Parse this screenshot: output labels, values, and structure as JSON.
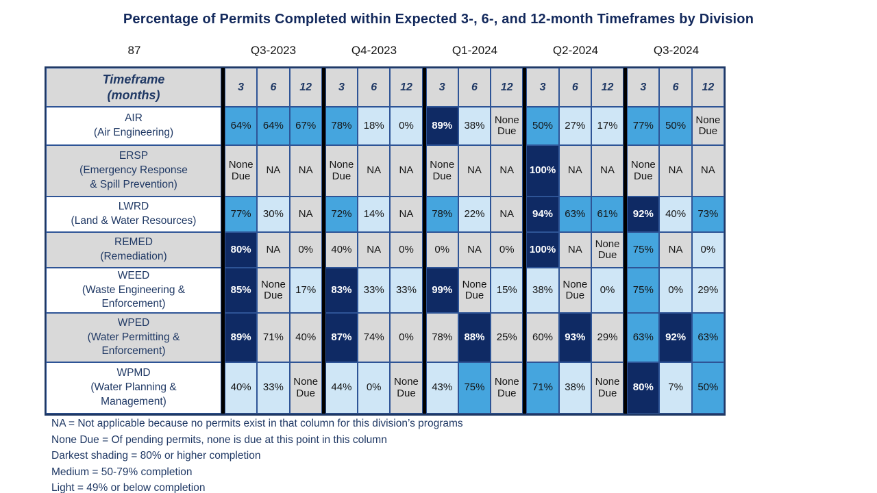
{
  "title": "Percentage of Permits Completed within Expected 3-, 6-, and 12-month Timeframes by Division",
  "page_number": "87",
  "quarters": [
    "Q3-2023",
    "Q4-2023",
    "Q1-2024",
    "Q2-2024",
    "Q3-2024"
  ],
  "table_header": {
    "timeframe_label": "Timeframe\n(months)",
    "months": [
      "3",
      "6",
      "12"
    ]
  },
  "footnotes": [
    "NA = Not applicable because no permits exist in that column for this division’s programs",
    "None Due = Of pending permits, none is due at this point in this column",
    "Darkest shading = 80% or higher completion",
    "Medium = 50-79% completion",
    "Light = 49% or below completion"
  ],
  "colors": {
    "dark_shading": "#0f2a64",
    "medium_shading": "#45a5de",
    "light_shading": "#cfe6f6",
    "gray_na": "#d9d9d9",
    "navy_text": "#1f3864",
    "cell_border": "#2e5496",
    "group_separator": "#000000",
    "title_text": "#13295c"
  },
  "chart_data": {
    "type": "heatmap",
    "title": "Percentage of Permits Completed within Expected 3-, 6-, and 12-month Timeframes by Division",
    "column_groups": [
      "Q3-2023",
      "Q4-2023",
      "Q1-2024",
      "Q2-2024",
      "Q3-2024"
    ],
    "subcolumns_per_group": [
      "3",
      "6",
      "12"
    ],
    "shade_scale": {
      "dark": "80% or higher completion",
      "medium": "50-79% completion",
      "light": "49% or below completion",
      "gray": "NA / None Due / unshaded"
    },
    "rows": [
      {
        "division": "AIR",
        "label_lines": "AIR\n(Air Engineering)",
        "shaded_label": false,
        "cells": [
          {
            "v": "64%",
            "s": "medium"
          },
          {
            "v": "64%",
            "s": "medium"
          },
          {
            "v": "67%",
            "s": "medium"
          },
          {
            "v": "78%",
            "s": "medium"
          },
          {
            "v": "18%",
            "s": "light"
          },
          {
            "v": "0%",
            "s": "light"
          },
          {
            "v": "89%",
            "s": "dark"
          },
          {
            "v": "38%",
            "s": "light"
          },
          {
            "v": "None Due",
            "s": "gray"
          },
          {
            "v": "50%",
            "s": "medium"
          },
          {
            "v": "27%",
            "s": "light"
          },
          {
            "v": "17%",
            "s": "light"
          },
          {
            "v": "77%",
            "s": "medium"
          },
          {
            "v": "50%",
            "s": "medium"
          },
          {
            "v": "None Due",
            "s": "gray"
          }
        ]
      },
      {
        "division": "ERSP",
        "label_lines": "ERSP\n(Emergency Response\n& Spill Prevention)",
        "shaded_label": true,
        "cells": [
          {
            "v": "None Due",
            "s": "gray"
          },
          {
            "v": "NA",
            "s": "gray"
          },
          {
            "v": "NA",
            "s": "gray"
          },
          {
            "v": "None Due",
            "s": "gray"
          },
          {
            "v": "NA",
            "s": "gray"
          },
          {
            "v": "NA",
            "s": "gray"
          },
          {
            "v": "None Due",
            "s": "gray"
          },
          {
            "v": "NA",
            "s": "gray"
          },
          {
            "v": "NA",
            "s": "gray"
          },
          {
            "v": "100%",
            "s": "dark"
          },
          {
            "v": "NA",
            "s": "gray"
          },
          {
            "v": "NA",
            "s": "gray"
          },
          {
            "v": "None Due",
            "s": "gray"
          },
          {
            "v": "NA",
            "s": "gray"
          },
          {
            "v": "NA",
            "s": "gray"
          }
        ]
      },
      {
        "division": "LWRD",
        "label_lines": "LWRD\n(Land & Water Resources)",
        "shaded_label": false,
        "cells": [
          {
            "v": "77%",
            "s": "medium"
          },
          {
            "v": "30%",
            "s": "light"
          },
          {
            "v": "NA",
            "s": "gray"
          },
          {
            "v": "72%",
            "s": "medium"
          },
          {
            "v": "14%",
            "s": "light"
          },
          {
            "v": "NA",
            "s": "gray"
          },
          {
            "v": "78%",
            "s": "medium"
          },
          {
            "v": "22%",
            "s": "light"
          },
          {
            "v": "NA",
            "s": "gray"
          },
          {
            "v": "94%",
            "s": "dark"
          },
          {
            "v": "63%",
            "s": "medium"
          },
          {
            "v": "61%",
            "s": "medium"
          },
          {
            "v": "92%",
            "s": "dark"
          },
          {
            "v": "40%",
            "s": "light"
          },
          {
            "v": "73%",
            "s": "medium"
          }
        ]
      },
      {
        "division": "REMED",
        "label_lines": "REMED\n(Remediation)",
        "shaded_label": true,
        "cells": [
          {
            "v": "80%",
            "s": "dark"
          },
          {
            "v": "NA",
            "s": "gray"
          },
          {
            "v": "0%",
            "s": "gray"
          },
          {
            "v": "40%",
            "s": "gray"
          },
          {
            "v": "NA",
            "s": "gray"
          },
          {
            "v": "0%",
            "s": "gray"
          },
          {
            "v": "0%",
            "s": "gray"
          },
          {
            "v": "NA",
            "s": "gray"
          },
          {
            "v": "0%",
            "s": "gray"
          },
          {
            "v": "100%",
            "s": "dark"
          },
          {
            "v": "NA",
            "s": "gray"
          },
          {
            "v": "None Due",
            "s": "gray"
          },
          {
            "v": "75%",
            "s": "medium"
          },
          {
            "v": "NA",
            "s": "gray"
          },
          {
            "v": "0%",
            "s": "light"
          }
        ]
      },
      {
        "division": "WEED",
        "label_lines": "WEED\n(Waste Engineering &\nEnforcement)",
        "shaded_label": false,
        "cells": [
          {
            "v": "85%",
            "s": "dark"
          },
          {
            "v": "None Due",
            "s": "gray"
          },
          {
            "v": "17%",
            "s": "light"
          },
          {
            "v": "83%",
            "s": "dark"
          },
          {
            "v": "33%",
            "s": "light"
          },
          {
            "v": "33%",
            "s": "light"
          },
          {
            "v": "99%",
            "s": "dark"
          },
          {
            "v": "None Due",
            "s": "gray"
          },
          {
            "v": "15%",
            "s": "light"
          },
          {
            "v": "38%",
            "s": "light"
          },
          {
            "v": "None Due",
            "s": "gray"
          },
          {
            "v": "0%",
            "s": "light"
          },
          {
            "v": "75%",
            "s": "medium"
          },
          {
            "v": "0%",
            "s": "light"
          },
          {
            "v": "29%",
            "s": "light"
          }
        ]
      },
      {
        "division": "WPED",
        "label_lines": "WPED\n(Water Permitting &\nEnforcement)",
        "shaded_label": true,
        "cells": [
          {
            "v": "89%",
            "s": "dark"
          },
          {
            "v": "71%",
            "s": "gray"
          },
          {
            "v": "40%",
            "s": "gray"
          },
          {
            "v": "87%",
            "s": "dark"
          },
          {
            "v": "74%",
            "s": "gray"
          },
          {
            "v": "0%",
            "s": "gray"
          },
          {
            "v": "78%",
            "s": "gray"
          },
          {
            "v": "88%",
            "s": "dark"
          },
          {
            "v": "25%",
            "s": "gray"
          },
          {
            "v": "60%",
            "s": "gray"
          },
          {
            "v": "93%",
            "s": "dark"
          },
          {
            "v": "29%",
            "s": "gray"
          },
          {
            "v": "63%",
            "s": "medium"
          },
          {
            "v": "92%",
            "s": "dark"
          },
          {
            "v": "63%",
            "s": "medium"
          }
        ]
      },
      {
        "division": "WPMD",
        "label_lines": "WPMD\n(Water Planning &\nManagement)",
        "shaded_label": false,
        "cells": [
          {
            "v": "40%",
            "s": "light"
          },
          {
            "v": "33%",
            "s": "light"
          },
          {
            "v": "None Due",
            "s": "gray"
          },
          {
            "v": "44%",
            "s": "light"
          },
          {
            "v": "0%",
            "s": "light"
          },
          {
            "v": "None Due",
            "s": "gray"
          },
          {
            "v": "43%",
            "s": "light"
          },
          {
            "v": "75%",
            "s": "medium"
          },
          {
            "v": "None Due",
            "s": "gray"
          },
          {
            "v": "71%",
            "s": "medium"
          },
          {
            "v": "38%",
            "s": "light"
          },
          {
            "v": "None Due",
            "s": "gray"
          },
          {
            "v": "80%",
            "s": "dark"
          },
          {
            "v": "7%",
            "s": "light"
          },
          {
            "v": "50%",
            "s": "medium"
          }
        ]
      }
    ]
  }
}
